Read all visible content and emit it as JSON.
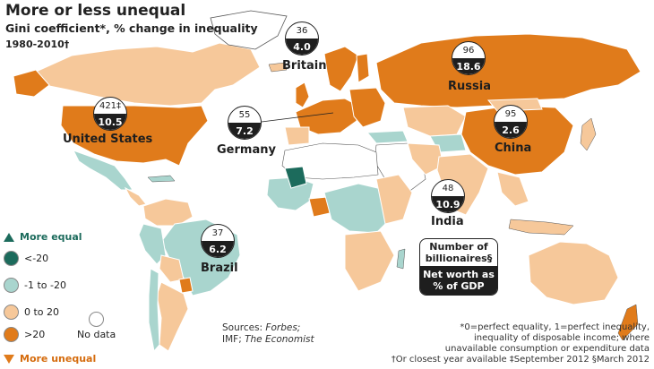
{
  "header": {
    "title": "More or less unequal",
    "subtitle": "Gini coefficient*, % change in inequality",
    "years": "1980-2010†"
  },
  "colors": {
    "more_equal_dark": "#1c6b5c",
    "minus1_to_minus20": "#a9d5ce",
    "zero_to_20": "#f6c89a",
    "over_20": "#e07b1b",
    "no_data": "#ffffff",
    "background": "#ffffff"
  },
  "legend": {
    "more_equal": "More equal",
    "lt_minus20": "<-20",
    "minus1_to_minus20": "-1 to -20",
    "zero_to_20": "0 to 20",
    "gt_20": ">20",
    "no_data": "No data",
    "more_unequal": "More unequal"
  },
  "badges": {
    "britain": {
      "name": "Britain",
      "billionaires": "36",
      "net_worth": "4.0"
    },
    "russia": {
      "name": "Russia",
      "billionaires": "96",
      "net_worth": "18.6"
    },
    "united_states": {
      "name": "United States",
      "billionaires": "421‡",
      "net_worth": "10.5"
    },
    "germany": {
      "name": "Germany",
      "billionaires": "55",
      "net_worth": "7.2"
    },
    "china": {
      "name": "China",
      "billionaires": "95",
      "net_worth": "2.6"
    },
    "india": {
      "name": "India",
      "billionaires": "48",
      "net_worth": "10.9"
    },
    "brazil": {
      "name": "Brazil",
      "billionaires": "37",
      "net_worth": "6.2"
    }
  },
  "key_box": {
    "top": "Number of billionaires§",
    "bottom": "Net worth as % of GDP"
  },
  "sources": {
    "line1_prefix": "Sources: ",
    "line1_italic": "Forbes;",
    "line2_prefix": "IMF; ",
    "line2_italic": "The Economist"
  },
  "footnotes": {
    "line1": "*0=perfect equality, 1=perfect inequality,",
    "line2": "inequality of disposable income; where",
    "line3": "unavailable consumption or expenditure data",
    "line4": "†Or closest year available    ‡September 2012    §March 2012"
  }
}
